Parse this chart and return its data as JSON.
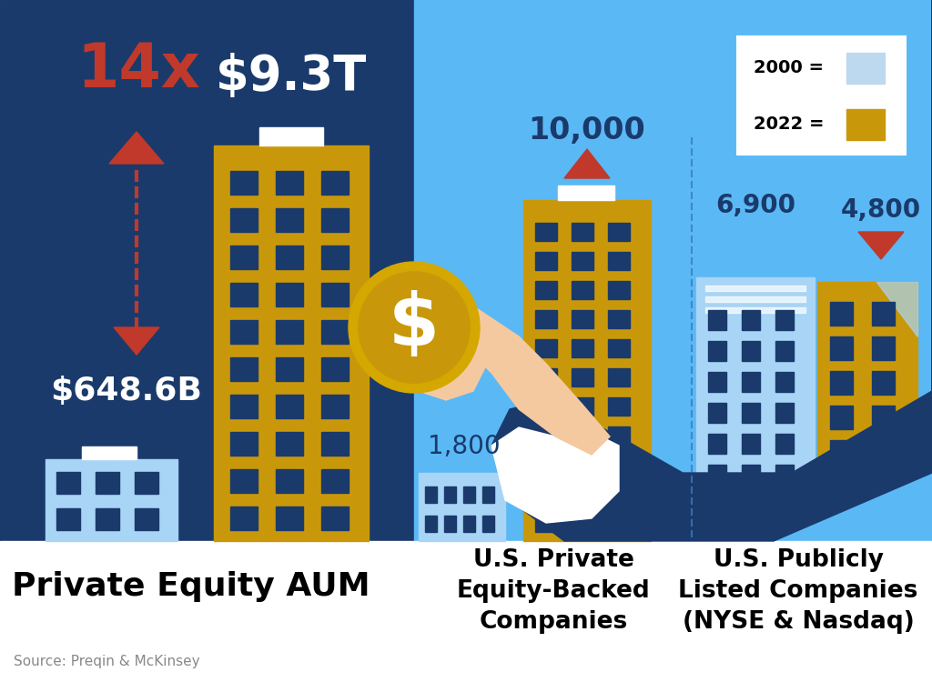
{
  "bg_left": "#1a3a6b",
  "bg_right": "#5ab8f5",
  "white": "#ffffff",
  "gold": "#c9980a",
  "light_blue_building": "#a8d4f5",
  "dark_blue_building": "#1a3a6b",
  "orange_arrow": "#c0392b",
  "text_orange": "#c0392b",
  "text_dark_blue": "#1a3a6b",
  "legend_blue": "#bdd9f0",
  "legend_gold": "#c9980a",
  "skin": "#f5c9a0",
  "sleeve": "#1a3a6b",
  "aum_value_2000": "$648.6B",
  "aum_value_2022": "$9.3T",
  "aum_multiplier": "14x",
  "pe_companies_2000": "1,800",
  "pe_companies_2022": "10,000",
  "public_companies_2000": "6,900",
  "public_companies_2022": "4,800",
  "label_pe_aum": "Private Equity AUM",
  "label_pe_backed": "U.S. Private\nEquity-Backed\nCompanies",
  "label_public": "U.S. Publicly\nListed Companies\n(NYSE & Nasdaq)",
  "source": "Source: Preqin & McKinsey",
  "legend_2000": "2000 =",
  "legend_2022": "2022 ="
}
